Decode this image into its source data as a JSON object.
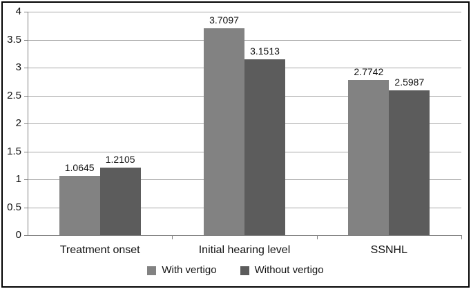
{
  "figure": {
    "background": "#ffffff",
    "border_color": "#000000"
  },
  "chart_data": {
    "type": "bar",
    "title": "",
    "xlabel": "",
    "ylabel": "",
    "categories": [
      "Treatment onset",
      "Initial hearing level",
      "SSNHL"
    ],
    "series": [
      {
        "name": "With vertigo",
        "color": "#828282",
        "values": [
          1.0645,
          3.7097,
          2.7742
        ],
        "value_labels": [
          "1.0645",
          "3.7097",
          "2.7742"
        ]
      },
      {
        "name": "Without vertigo",
        "color": "#5c5c5c",
        "values": [
          1.2105,
          3.1513,
          2.5987
        ],
        "value_labels": [
          "1.2105",
          "3.1513",
          "2.5987"
        ]
      }
    ],
    "ylim": [
      0,
      4
    ],
    "yticks": [
      0,
      0.5,
      1,
      1.5,
      2,
      2.5,
      3,
      3.5,
      4
    ],
    "ytick_labels": [
      "0",
      "0.5",
      "1",
      "1.5",
      "2",
      "2.5",
      "3",
      "3.5",
      "4"
    ],
    "grid": "horizontal",
    "legend_position": "bottom",
    "gridline_color": "#a6a6a6",
    "axis_color": "#808080",
    "text_color": "#111111"
  }
}
